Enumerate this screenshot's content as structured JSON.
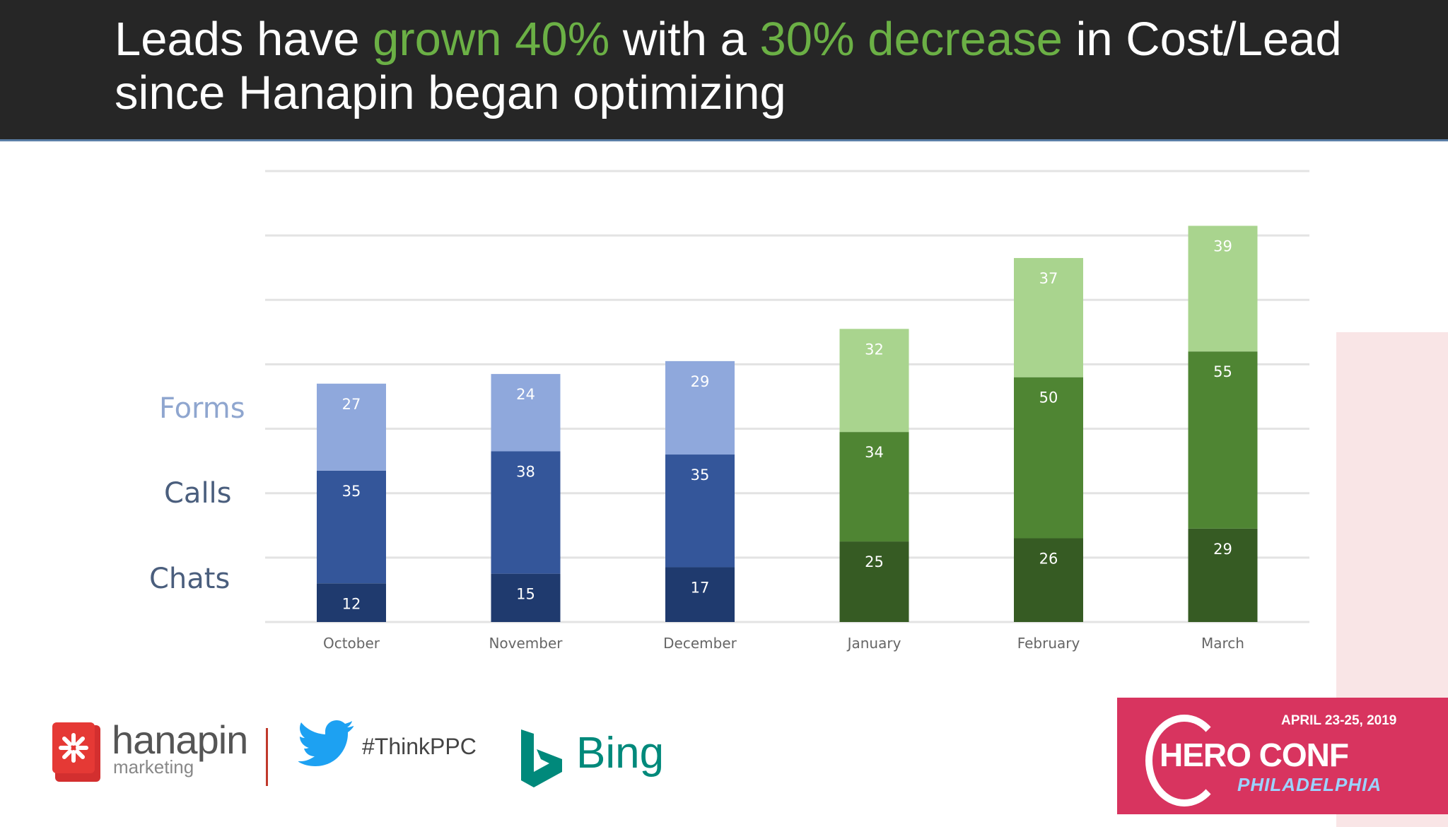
{
  "header": {
    "title_parts": [
      {
        "text": "Leads have ",
        "highlight": false
      },
      {
        "text": "grown 40%",
        "highlight": true
      },
      {
        "text": " with a ",
        "highlight": false
      },
      {
        "text": "30% decrease",
        "highlight": true
      },
      {
        "text": " in Cost/Lead since Hanapin began optimizing",
        "highlight": false
      }
    ],
    "highlight_color": "#6bb045"
  },
  "legend": {
    "forms": "Forms",
    "calls": "Calls",
    "chats": "Chats"
  },
  "chart_data": {
    "type": "bar",
    "stacked": true,
    "categories": [
      "October",
      "November",
      "December",
      "January",
      "February",
      "March"
    ],
    "series": [
      {
        "name": "Chats",
        "values": [
          12,
          15,
          17,
          25,
          26,
          29
        ]
      },
      {
        "name": "Calls",
        "values": [
          35,
          38,
          35,
          34,
          50,
          55
        ]
      },
      {
        "name": "Forms",
        "values": [
          27,
          24,
          29,
          32,
          37,
          39
        ]
      }
    ],
    "colors": {
      "blue": [
        "#1f3a6e",
        "#34569a",
        "#8fa8dc"
      ],
      "green": [
        "#365b23",
        "#4f8533",
        "#a9d48e"
      ]
    },
    "ylim": [
      0,
      140
    ],
    "grid": true
  },
  "footer": {
    "hanapin_name": "hanapin",
    "hanapin_sub": "marketing",
    "hashtag": "#ThinkPPC",
    "bing_name": "Bing",
    "heroconf_date": "APRIL 23-25, 2019",
    "heroconf_name": "HERO CONF",
    "heroconf_city": "PHILADELPHIA"
  }
}
